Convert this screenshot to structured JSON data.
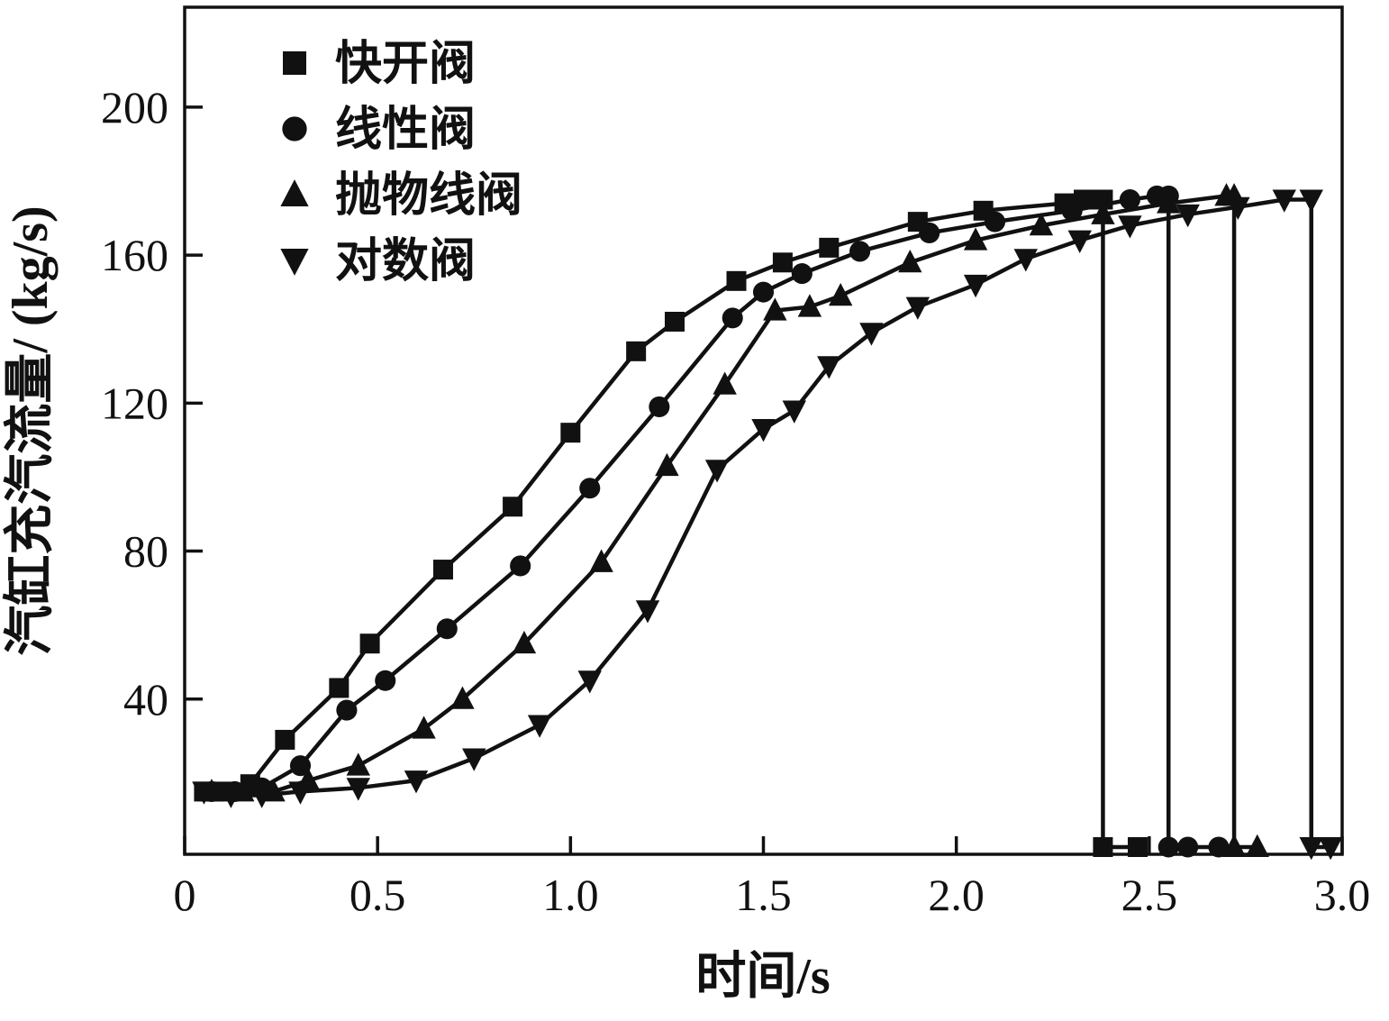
{
  "figure": {
    "background": "#ffffff",
    "ink_color": "#111111"
  },
  "chart_data": {
    "type": "line",
    "title": "",
    "xlabel": "时间/s",
    "ylabel": "汽缸充汽流量/ (kg/s)",
    "xlim": [
      0,
      3.0
    ],
    "ylim": [
      0,
      227
    ],
    "x_ticks": [
      0,
      0.5,
      1.0,
      1.5,
      2.0,
      2.5,
      3.0
    ],
    "x_tick_labels": [
      "0",
      "0.5",
      "1.0",
      "1.5",
      "2.0",
      "2.5",
      "3.0"
    ],
    "y_ticks": [
      40,
      80,
      120,
      160,
      200
    ],
    "y_tick_labels": [
      "40",
      "80",
      "120",
      "160",
      "200"
    ],
    "grid": false,
    "legend_position": "upper-left-inside",
    "series": [
      {
        "id": "quick-opening-valve",
        "name": "快开阀",
        "marker": "square",
        "x": [
          0.05,
          0.1,
          0.17,
          0.26,
          0.4,
          0.48,
          0.67,
          0.85,
          1.0,
          1.17,
          1.27,
          1.43,
          1.55,
          1.67,
          1.9,
          2.07,
          2.28,
          2.33,
          2.38,
          2.38,
          2.47
        ],
        "y": [
          15,
          15,
          17,
          29,
          43,
          55,
          75,
          92,
          112,
          134,
          142,
          153,
          158,
          162,
          169,
          172,
          174,
          175,
          175,
          0,
          0
        ]
      },
      {
        "id": "linear-valve",
        "name": "线性阀",
        "marker": "circle",
        "x": [
          0.07,
          0.13,
          0.2,
          0.3,
          0.42,
          0.52,
          0.68,
          0.87,
          1.05,
          1.23,
          1.42,
          1.5,
          1.6,
          1.75,
          1.93,
          2.1,
          2.3,
          2.45,
          2.52,
          2.55,
          2.55,
          2.6,
          2.68
        ],
        "y": [
          15,
          15,
          16,
          22,
          37,
          45,
          59,
          76,
          97,
          119,
          143,
          150,
          155,
          161,
          166,
          169,
          172,
          175,
          176,
          176,
          0,
          0,
          0
        ]
      },
      {
        "id": "parabolic-valve",
        "name": "抛物线阀",
        "marker": "triangle-up",
        "x": [
          0.07,
          0.15,
          0.23,
          0.32,
          0.45,
          0.62,
          0.72,
          0.88,
          1.08,
          1.25,
          1.4,
          1.53,
          1.62,
          1.7,
          1.88,
          2.05,
          2.22,
          2.38,
          2.55,
          2.7,
          2.72,
          2.72,
          2.78
        ],
        "y": [
          15,
          15,
          15,
          18,
          22,
          32,
          40,
          55,
          77,
          103,
          125,
          145,
          146,
          149,
          158,
          164,
          168,
          171,
          174,
          176,
          176,
          0,
          0
        ]
      },
      {
        "id": "logarithmic-valve",
        "name": "对数阀",
        "marker": "triangle-down",
        "x": [
          0.05,
          0.12,
          0.2,
          0.3,
          0.45,
          0.6,
          0.75,
          0.92,
          1.05,
          1.2,
          1.38,
          1.5,
          1.58,
          1.67,
          1.78,
          1.9,
          2.05,
          2.18,
          2.32,
          2.45,
          2.6,
          2.73,
          2.85,
          2.92,
          2.92,
          2.97
        ],
        "y": [
          15,
          14,
          14,
          15,
          16,
          18,
          24,
          33,
          45,
          64,
          102,
          113,
          118,
          130,
          139,
          146,
          152,
          159,
          164,
          168,
          171,
          173,
          175,
          175,
          0,
          0
        ]
      }
    ]
  }
}
